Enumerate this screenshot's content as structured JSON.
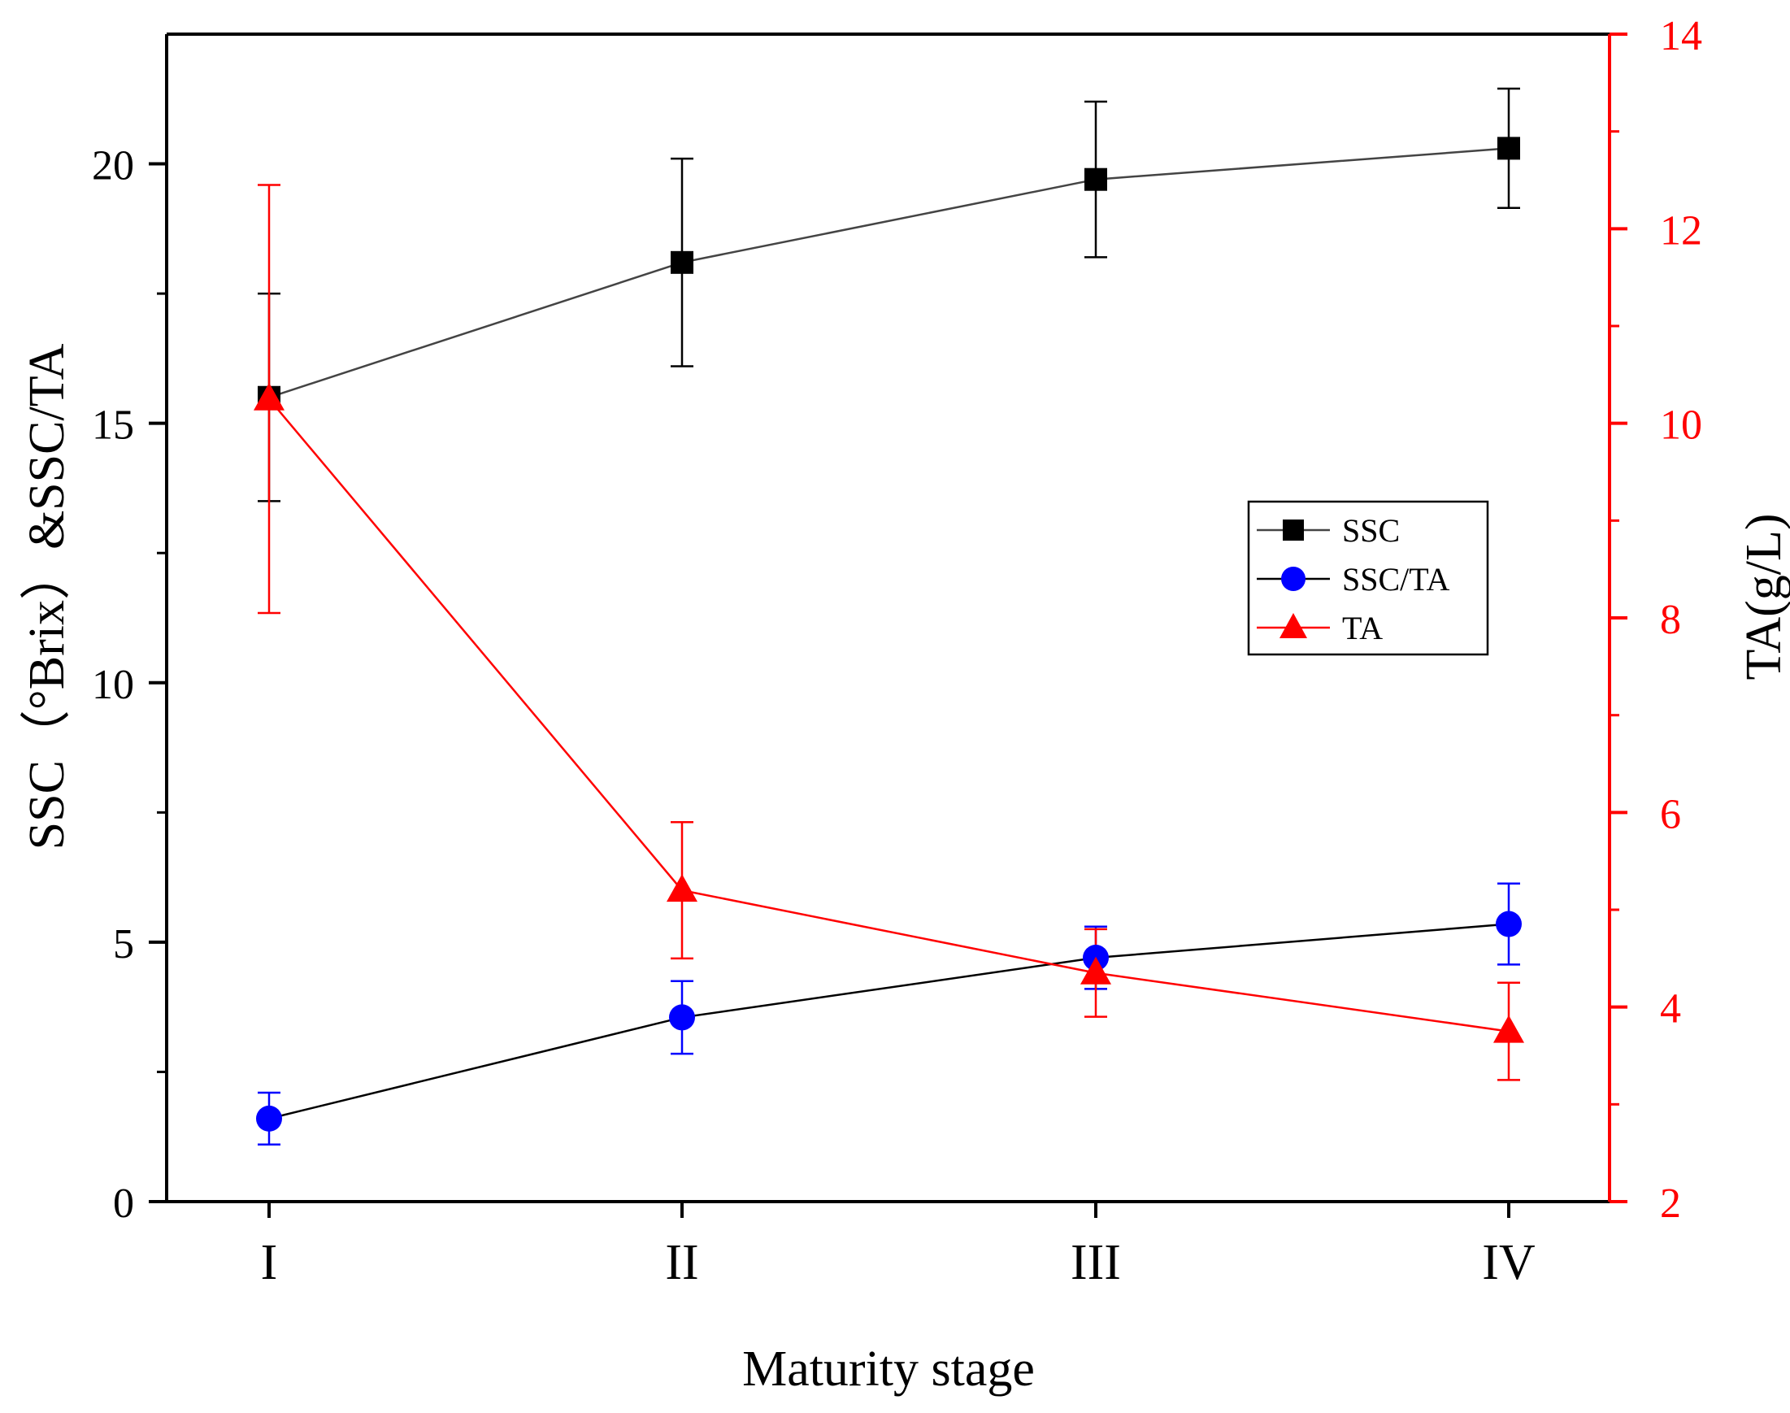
{
  "chart_data": {
    "type": "line",
    "categories": [
      "I",
      "II",
      "III",
      "IV"
    ],
    "xlabel": "Maturity stage",
    "ylabel_left": "SSC（°Brix）&SSC/TA",
    "ylabel_right": "TA(g/L)",
    "ylim_left": [
      0,
      22.5
    ],
    "yticks_left": [
      0,
      5,
      10,
      15,
      20
    ],
    "ylim_right": [
      2,
      14
    ],
    "yticks_right": [
      2,
      4,
      6,
      8,
      10,
      12,
      14
    ],
    "grid": false,
    "legend_position": "right-center",
    "colors": {
      "axis_left": "#000000",
      "axis_right": "#ff0000"
    },
    "series": [
      {
        "name": "SSC",
        "axis": "left",
        "marker": "square",
        "color": "#000000",
        "line_color": "#444444",
        "values": [
          15.5,
          18.1,
          19.7,
          20.3
        ],
        "errors": [
          2.0,
          2.0,
          1.5,
          1.15
        ]
      },
      {
        "name": "SSC/TA",
        "axis": "left",
        "marker": "circle",
        "color": "#0000ff",
        "line_color": "#000000",
        "values": [
          1.6,
          3.55,
          4.7,
          5.35
        ],
        "errors": [
          0.5,
          0.7,
          0.6,
          0.78
        ]
      },
      {
        "name": "TA",
        "axis": "right",
        "marker": "triangle",
        "color": "#ff0000",
        "line_color": "#ff0000",
        "values": [
          10.25,
          5.2,
          4.35,
          3.75
        ],
        "errors": [
          2.2,
          0.7,
          0.45,
          0.5
        ]
      }
    ]
  }
}
